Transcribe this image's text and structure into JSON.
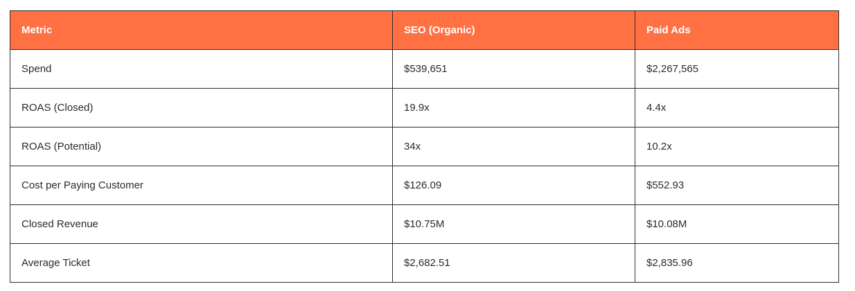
{
  "colors": {
    "header_background": "#ff7043",
    "header_text": "#ffffff",
    "border": "#2b2b2b",
    "cell_text": "#2a2a2a"
  },
  "table": {
    "headers": [
      "Metric",
      "SEO (Organic)",
      "Paid Ads"
    ],
    "rows": [
      [
        "Spend",
        "$539,651",
        "$2,267,565"
      ],
      [
        "ROAS (Closed)",
        "19.9x",
        "4.4x"
      ],
      [
        "ROAS (Potential)",
        "34x",
        "10.2x"
      ],
      [
        "Cost per Paying Customer",
        "$126.09",
        "$552.93"
      ],
      [
        "Closed Revenue",
        "$10.75M",
        "$10.08M"
      ],
      [
        "Average Ticket",
        "$2,682.51",
        "$2,835.96"
      ]
    ]
  }
}
